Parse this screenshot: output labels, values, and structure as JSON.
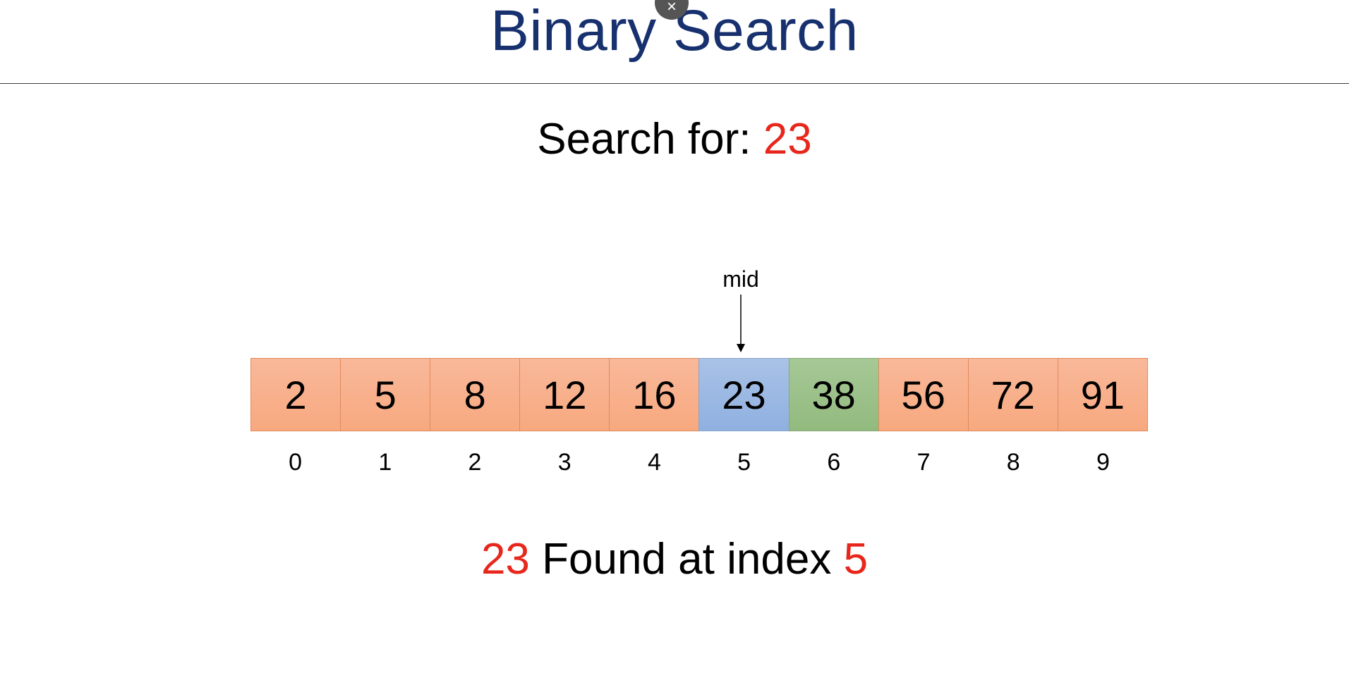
{
  "title": "Binary Search",
  "close_symbol": "×",
  "search": {
    "label": "Search for:",
    "target": "23"
  },
  "pointer": {
    "label": "mid",
    "index": 5
  },
  "array": {
    "values": [
      "2",
      "5",
      "8",
      "12",
      "16",
      "23",
      "38",
      "56",
      "72",
      "91"
    ],
    "indices": [
      "0",
      "1",
      "2",
      "3",
      "4",
      "5",
      "6",
      "7",
      "8",
      "9"
    ],
    "mid_index": 5,
    "compared_index": 6
  },
  "result": {
    "value": "23",
    "text": "Found at index",
    "index": "5"
  },
  "colors": {
    "title": "#17306e",
    "highlight": "#e8271c",
    "cell_default": "#f7a97f",
    "cell_mid": "#8fb0e0",
    "cell_compared": "#92ba7e"
  }
}
